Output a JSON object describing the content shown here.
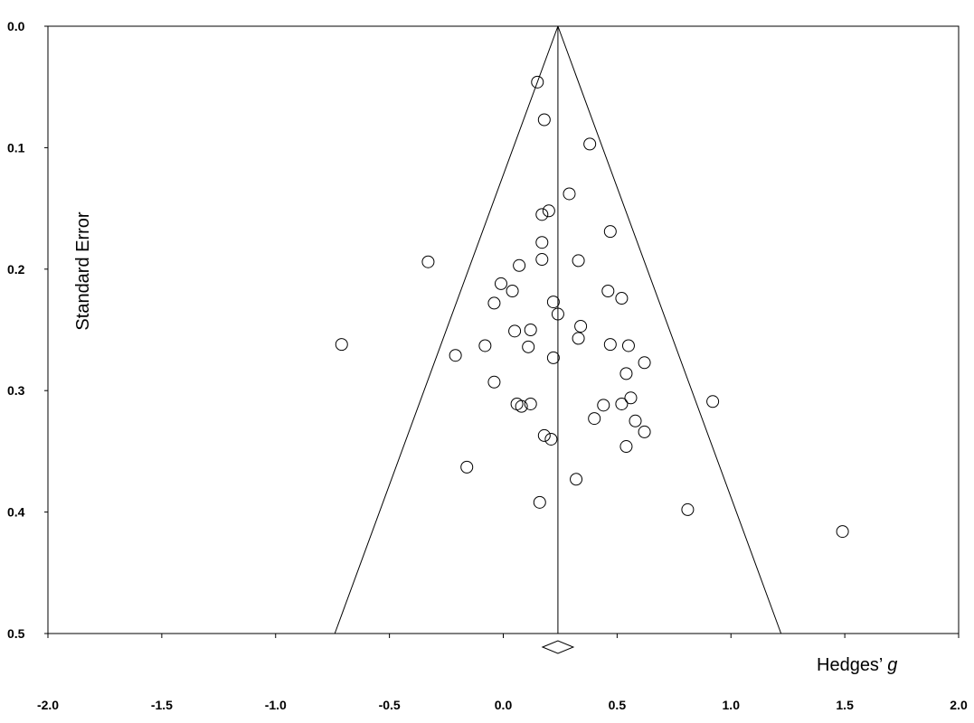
{
  "chart_data": {
    "type": "scatter",
    "subtype": "funnel plot",
    "xlabel": "Hedges’",
    "xlabel_symbol": "g",
    "ylabel": "Standard Error",
    "xlim": [
      -2.0,
      2.0
    ],
    "ylim": [
      0.5,
      0.0
    ],
    "y_axis_inverted": true,
    "xticks": [
      "-2.0",
      "-1.5",
      "-1.0",
      "-0.5",
      "0.0",
      "0.5",
      "1.0",
      "1.5",
      "2.0"
    ],
    "yticks": [
      "0.0",
      "0.1",
      "0.2",
      "0.3",
      "0.4",
      "0.5"
    ],
    "summary_effect": 0.24,
    "funnel_limits_at_se_0_5": [
      -0.74,
      1.22
    ],
    "grid": false,
    "points": [
      {
        "g": 0.15,
        "se": 0.046
      },
      {
        "g": 0.18,
        "se": 0.077
      },
      {
        "g": 0.38,
        "se": 0.097
      },
      {
        "g": 0.29,
        "se": 0.138
      },
      {
        "g": 0.2,
        "se": 0.152
      },
      {
        "g": 0.17,
        "se": 0.155
      },
      {
        "g": 0.47,
        "se": 0.169
      },
      {
        "g": 0.17,
        "se": 0.178
      },
      {
        "g": -0.33,
        "se": 0.194
      },
      {
        "g": 0.17,
        "se": 0.192
      },
      {
        "g": 0.33,
        "se": 0.193
      },
      {
        "g": 0.07,
        "se": 0.197
      },
      {
        "g": -0.01,
        "se": 0.212
      },
      {
        "g": 0.04,
        "se": 0.218
      },
      {
        "g": 0.46,
        "se": 0.218
      },
      {
        "g": 0.52,
        "se": 0.224
      },
      {
        "g": -0.04,
        "se": 0.228
      },
      {
        "g": 0.22,
        "se": 0.227
      },
      {
        "g": 0.24,
        "se": 0.237
      },
      {
        "g": 0.34,
        "se": 0.247
      },
      {
        "g": 0.05,
        "se": 0.251
      },
      {
        "g": 0.12,
        "se": 0.25
      },
      {
        "g": 0.33,
        "se": 0.257
      },
      {
        "g": -0.71,
        "se": 0.262
      },
      {
        "g": -0.08,
        "se": 0.263
      },
      {
        "g": 0.11,
        "se": 0.264
      },
      {
        "g": 0.47,
        "se": 0.262
      },
      {
        "g": 0.55,
        "se": 0.263
      },
      {
        "g": -0.21,
        "se": 0.271
      },
      {
        "g": 0.22,
        "se": 0.273
      },
      {
        "g": 0.62,
        "se": 0.277
      },
      {
        "g": 0.54,
        "se": 0.286
      },
      {
        "g": -0.04,
        "se": 0.293
      },
      {
        "g": 0.56,
        "se": 0.306
      },
      {
        "g": 0.06,
        "se": 0.311
      },
      {
        "g": 0.08,
        "se": 0.313
      },
      {
        "g": 0.12,
        "se": 0.311
      },
      {
        "g": 0.44,
        "se": 0.312
      },
      {
        "g": 0.52,
        "se": 0.311
      },
      {
        "g": 0.92,
        "se": 0.309
      },
      {
        "g": 0.4,
        "se": 0.323
      },
      {
        "g": 0.58,
        "se": 0.325
      },
      {
        "g": 0.62,
        "se": 0.334
      },
      {
        "g": 0.18,
        "se": 0.337
      },
      {
        "g": 0.21,
        "se": 0.34
      },
      {
        "g": 0.54,
        "se": 0.346
      },
      {
        "g": -0.16,
        "se": 0.363
      },
      {
        "g": 0.32,
        "se": 0.373
      },
      {
        "g": 0.16,
        "se": 0.392
      },
      {
        "g": 0.81,
        "se": 0.398
      },
      {
        "g": 1.49,
        "se": 0.416
      }
    ]
  }
}
